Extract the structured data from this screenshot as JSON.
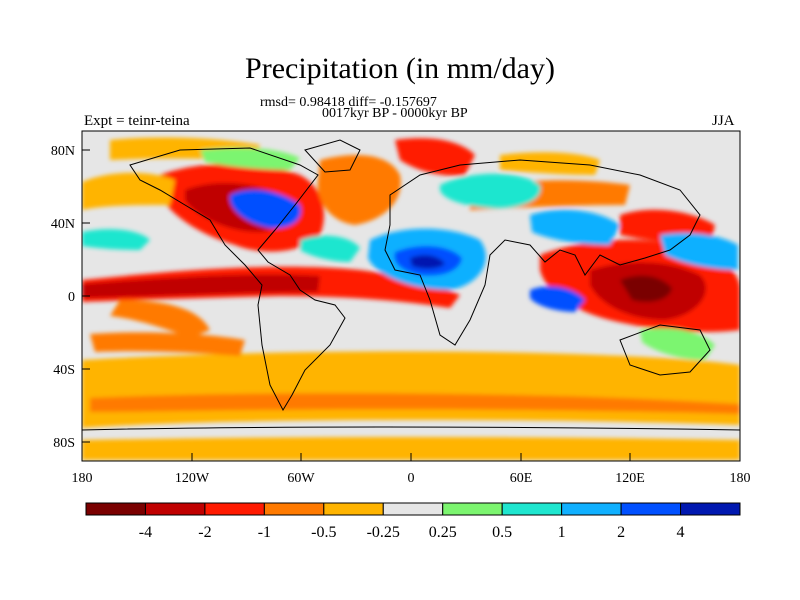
{
  "title": "Precipitation (in mm/day)",
  "stats_line": "rmsd= 0.98418 diff= -0.157697",
  "period_line": "0017kyr BP - 0000kyr BP",
  "experiment": "Expt = teinr-teina",
  "season": "JJA",
  "axes": {
    "lat_ticks": [
      "80N",
      "40N",
      "0",
      "40S",
      "80S"
    ],
    "lon_ticks": [
      "180",
      "120W",
      "60W",
      "0",
      "60E",
      "120E",
      "180"
    ]
  },
  "colorbar": {
    "colors": [
      "#7a0000",
      "#c00000",
      "#ff1a00",
      "#ff7a00",
      "#ffb400",
      "#e6e6e6",
      "#7cf56f",
      "#1fe6cf",
      "#10b0ff",
      "#0050ff",
      "#0018b0"
    ],
    "labels": [
      "-4",
      "-2",
      "-1",
      "-0.5",
      "-0.25",
      "0.25",
      "0.5",
      "1",
      "2",
      "4"
    ]
  }
}
